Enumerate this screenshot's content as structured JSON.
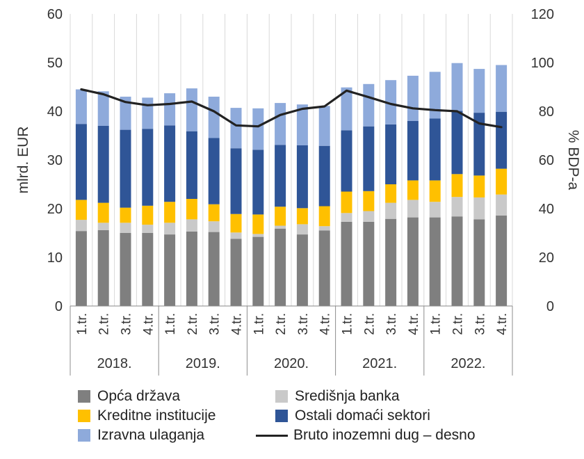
{
  "chart_data": {
    "type": "bar",
    "stacked": true,
    "categories": [
      "1.tr.",
      "2.tr.",
      "3.tr.",
      "4.tr.",
      "1.tr.",
      "2.tr.",
      "3.tr.",
      "4.tr.",
      "1.tr.",
      "2.tr.",
      "3.tr.",
      "4.tr.",
      "1.tr.",
      "2.tr.",
      "3.tr.",
      "4.tr.",
      "1.tr.",
      "2.tr.",
      "3.tr.",
      "4.tr."
    ],
    "years": [
      "2018.",
      "2019.",
      "2020.",
      "2021.",
      "2022."
    ],
    "ylabel": "mlrd. EUR",
    "y2label": "% BDP-a",
    "ylim": [
      0,
      60
    ],
    "y2lim": [
      0,
      120
    ],
    "yticks": [
      "0",
      "10",
      "20",
      "30",
      "40",
      "50",
      "60"
    ],
    "y2ticks": [
      "0",
      "20",
      "40",
      "60",
      "80",
      "100",
      "120"
    ],
    "grid": "vertical",
    "legend_position": "bottom",
    "series": [
      {
        "name": "Opća država",
        "color": "#7f7f7f",
        "values": [
          15.4,
          15.6,
          15.0,
          15.0,
          14.7,
          15.3,
          15.2,
          13.8,
          14.2,
          15.9,
          14.7,
          15.5,
          17.3,
          17.3,
          17.9,
          18.2,
          18.2,
          18.4,
          17.8,
          18.6
        ]
      },
      {
        "name": "Središnja banka",
        "color": "#c9c9c9",
        "values": [
          2.3,
          1.5,
          2.1,
          1.7,
          2.4,
          2.5,
          2.2,
          1.3,
          0.6,
          0.6,
          2.1,
          0.9,
          1.8,
          2.2,
          3.3,
          3.6,
          3.2,
          4.0,
          4.5,
          4.3
        ]
      },
      {
        "name": "Kreditne institucije",
        "color": "#ffc000",
        "values": [
          4.1,
          4.1,
          3.1,
          3.9,
          4.3,
          4.2,
          3.5,
          3.8,
          4.0,
          3.9,
          3.3,
          4.1,
          4.4,
          4.1,
          3.8,
          4.0,
          4.4,
          4.7,
          4.5,
          5.3
        ]
      },
      {
        "name": "Ostali domaći sektori",
        "color": "#2f5597",
        "values": [
          15.6,
          15.8,
          16.0,
          15.8,
          15.7,
          13.9,
          13.6,
          13.5,
          13.3,
          12.7,
          12.9,
          12.4,
          12.6,
          13.3,
          12.3,
          12.2,
          12.7,
          13.0,
          12.9,
          11.7
        ]
      },
      {
        "name": "Izravna ulaganja",
        "color": "#8eaadb",
        "values": [
          7.1,
          7.1,
          6.8,
          6.4,
          6.6,
          8.8,
          8.5,
          8.3,
          8.5,
          8.6,
          8.4,
          8.2,
          8.8,
          8.7,
          9.1,
          9.3,
          9.6,
          9.8,
          9.0,
          9.6
        ]
      }
    ],
    "line": {
      "name": "Bruto inozemni dug – desno",
      "color": "#222222",
      "values": [
        89.0,
        87.0,
        83.8,
        82.5,
        83.0,
        84.0,
        80.0,
        74.2,
        73.8,
        78.5,
        81.0,
        82.0,
        88.5,
        85.8,
        83.0,
        81.2,
        80.5,
        80.0,
        75.0,
        73.5
      ]
    }
  }
}
